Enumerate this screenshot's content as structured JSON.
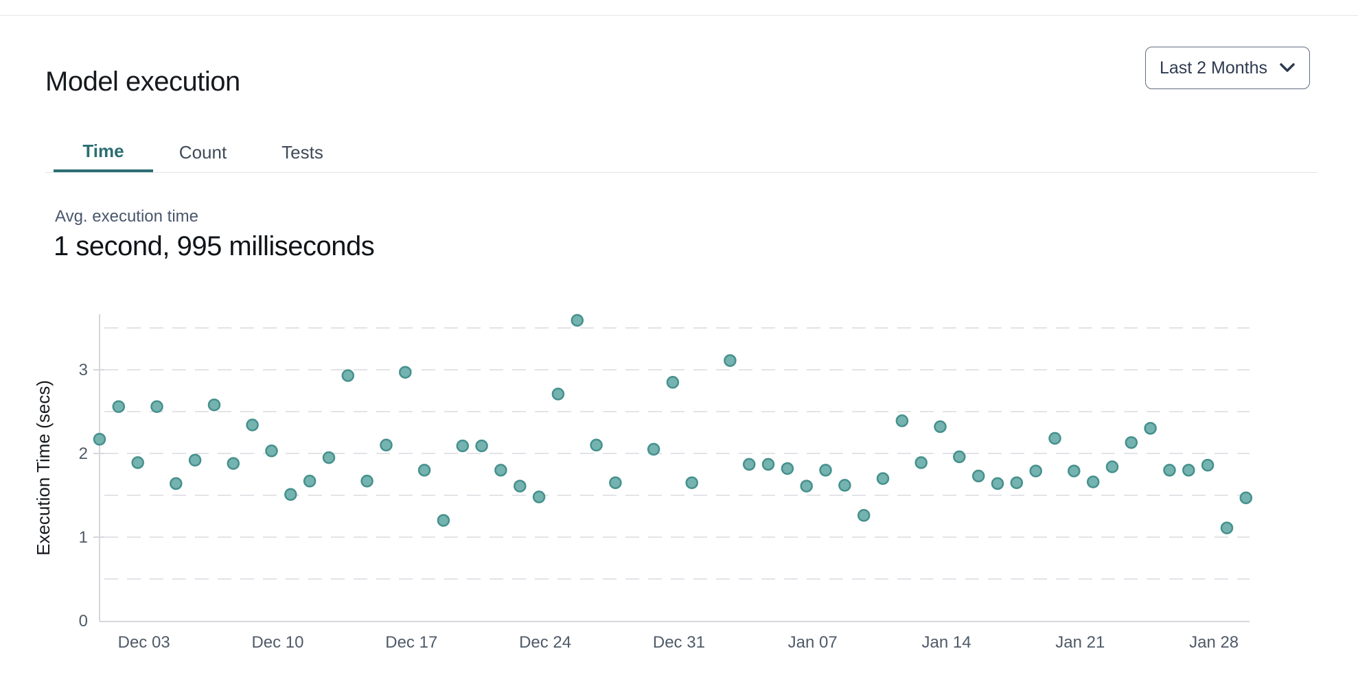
{
  "header": {
    "title": "Model execution",
    "range_selector": {
      "label": "Last 2 Months"
    }
  },
  "tabs": [
    {
      "label": "Time",
      "active": true
    },
    {
      "label": "Count",
      "active": false
    },
    {
      "label": "Tests",
      "active": false
    }
  ],
  "stat": {
    "label": "Avg. execution time",
    "value": "1 second, 995 milliseconds"
  },
  "colors": {
    "accent_teal": "#2b6e73",
    "point_fill": "#74b3b0",
    "point_stroke": "#45908c",
    "grid": "#e3e3e8",
    "axis": "#d6d6dc",
    "tick_text": "#4f5a68",
    "axis_title_text": "#15181c"
  },
  "chart_data": {
    "type": "scatter",
    "title": "",
    "xlabel": "",
    "ylabel": "Execution Time (secs)",
    "ylim": [
      0,
      3.66
    ],
    "y_ticks": [
      0,
      1,
      2,
      3
    ],
    "gridlines": [
      0.5,
      1,
      1.5,
      2,
      2.5,
      3,
      3.5
    ],
    "grid_style": "dashed horizontal",
    "legend": "none",
    "x_ticks": [
      {
        "label": "Dec 03",
        "day": 2
      },
      {
        "label": "Dec 10",
        "day": 9
      },
      {
        "label": "Dec 17",
        "day": 16
      },
      {
        "label": "Dec 24",
        "day": 23
      },
      {
        "label": "Dec 31",
        "day": 30
      },
      {
        "label": "Jan 07",
        "day": 37
      },
      {
        "label": "Jan 14",
        "day": 44
      },
      {
        "label": "Jan 21",
        "day": 51
      },
      {
        "label": "Jan 28",
        "day": 58
      }
    ],
    "points": [
      {
        "date": "Dec 01",
        "day": 0,
        "secs": 2.17
      },
      {
        "date": "Dec 02",
        "day": 1,
        "secs": 2.56
      },
      {
        "date": "Dec 03",
        "day": 2,
        "secs": 1.89
      },
      {
        "date": "Dec 04",
        "day": 3,
        "secs": 2.56
      },
      {
        "date": "Dec 05",
        "day": 4,
        "secs": 1.64
      },
      {
        "date": "Dec 06",
        "day": 5,
        "secs": 1.92
      },
      {
        "date": "Dec 07",
        "day": 6,
        "secs": 2.58
      },
      {
        "date": "Dec 08",
        "day": 7,
        "secs": 1.88
      },
      {
        "date": "Dec 09",
        "day": 8,
        "secs": 2.34
      },
      {
        "date": "Dec 10",
        "day": 9,
        "secs": 2.03
      },
      {
        "date": "Dec 11",
        "day": 10,
        "secs": 1.51
      },
      {
        "date": "Dec 12",
        "day": 11,
        "secs": 1.67
      },
      {
        "date": "Dec 13",
        "day": 12,
        "secs": 1.95
      },
      {
        "date": "Dec 14",
        "day": 13,
        "secs": 2.93
      },
      {
        "date": "Dec 15",
        "day": 14,
        "secs": 1.67
      },
      {
        "date": "Dec 16",
        "day": 15,
        "secs": 2.1
      },
      {
        "date": "Dec 17",
        "day": 16,
        "secs": 2.97
      },
      {
        "date": "Dec 18",
        "day": 17,
        "secs": 1.8
      },
      {
        "date": "Dec 19",
        "day": 18,
        "secs": 1.2
      },
      {
        "date": "Dec 20",
        "day": 19,
        "secs": 2.09
      },
      {
        "date": "Dec 21",
        "day": 20,
        "secs": 2.09
      },
      {
        "date": "Dec 22",
        "day": 21,
        "secs": 1.8
      },
      {
        "date": "Dec 23",
        "day": 22,
        "secs": 1.61
      },
      {
        "date": "Dec 24",
        "day": 23,
        "secs": 1.48
      },
      {
        "date": "Dec 25",
        "day": 24,
        "secs": 2.71
      },
      {
        "date": "Dec 26",
        "day": 25,
        "secs": 3.59
      },
      {
        "date": "Dec 27",
        "day": 26,
        "secs": 2.1
      },
      {
        "date": "Dec 28",
        "day": 27,
        "secs": 1.65
      },
      {
        "date": "Dec 30",
        "day": 29,
        "secs": 2.05
      },
      {
        "date": "Dec 31",
        "day": 30,
        "secs": 2.85
      },
      {
        "date": "Jan 01",
        "day": 31,
        "secs": 1.65
      },
      {
        "date": "Jan 03",
        "day": 33,
        "secs": 3.11
      },
      {
        "date": "Jan 04",
        "day": 34,
        "secs": 1.87
      },
      {
        "date": "Jan 05",
        "day": 35,
        "secs": 1.87
      },
      {
        "date": "Jan 06",
        "day": 36,
        "secs": 1.82
      },
      {
        "date": "Jan 07",
        "day": 37,
        "secs": 1.61
      },
      {
        "date": "Jan 08",
        "day": 38,
        "secs": 1.8
      },
      {
        "date": "Jan 09",
        "day": 39,
        "secs": 1.62
      },
      {
        "date": "Jan 10",
        "day": 40,
        "secs": 1.26
      },
      {
        "date": "Jan 11",
        "day": 41,
        "secs": 1.7
      },
      {
        "date": "Jan 12",
        "day": 42,
        "secs": 2.39
      },
      {
        "date": "Jan 13",
        "day": 43,
        "secs": 1.89
      },
      {
        "date": "Jan 14",
        "day": 44,
        "secs": 2.32
      },
      {
        "date": "Jan 15",
        "day": 45,
        "secs": 1.96
      },
      {
        "date": "Jan 16",
        "day": 46,
        "secs": 1.73
      },
      {
        "date": "Jan 17",
        "day": 47,
        "secs": 1.64
      },
      {
        "date": "Jan 18",
        "day": 48,
        "secs": 1.65
      },
      {
        "date": "Jan 19",
        "day": 49,
        "secs": 1.79
      },
      {
        "date": "Jan 20",
        "day": 50,
        "secs": 2.18
      },
      {
        "date": "Jan 21",
        "day": 51,
        "secs": 1.79
      },
      {
        "date": "Jan 22",
        "day": 52,
        "secs": 1.66
      },
      {
        "date": "Jan 23",
        "day": 53,
        "secs": 1.84
      },
      {
        "date": "Jan 24",
        "day": 54,
        "secs": 2.13
      },
      {
        "date": "Jan 25",
        "day": 55,
        "secs": 2.3
      },
      {
        "date": "Jan 26",
        "day": 56,
        "secs": 1.8
      },
      {
        "date": "Jan 27",
        "day": 57,
        "secs": 1.8
      },
      {
        "date": "Jan 28",
        "day": 58,
        "secs": 1.86
      },
      {
        "date": "Jan 29",
        "day": 59,
        "secs": 1.11
      },
      {
        "date": "Jan 30",
        "day": 60,
        "secs": 1.47
      }
    ]
  }
}
